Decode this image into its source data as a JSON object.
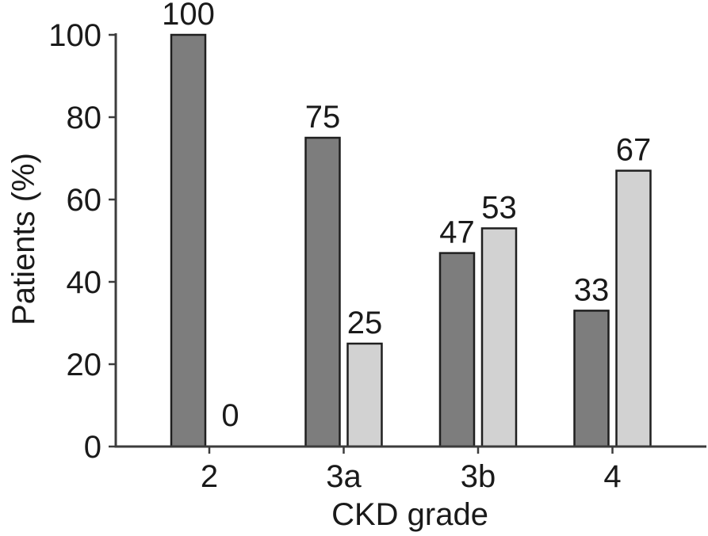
{
  "figure": {
    "background": "#ffffff"
  },
  "chart_data": {
    "type": "bar",
    "title": "",
    "xlabel": "CKD grade",
    "ylabel": "Patients (%)",
    "categories": [
      "2",
      "3a",
      "3b",
      "4"
    ],
    "series": [
      {
        "name": "dark-gray",
        "color": "#7d7d7d",
        "values": [
          100,
          75,
          47,
          33
        ]
      },
      {
        "name": "light-gray",
        "color": "#d2d2d2",
        "values": [
          0,
          25,
          53,
          67
        ]
      }
    ],
    "value_labels": [
      [
        "100",
        "75",
        "47",
        "33"
      ],
      [
        "0",
        "25",
        "53",
        "67"
      ]
    ],
    "ylim": [
      0,
      100
    ],
    "yticks": [
      "0",
      "20",
      "40",
      "60",
      "80",
      "100"
    ],
    "grid": false,
    "legend": "none",
    "bar_border_color": "#1f1f1f",
    "axis_color": "#3c3c3c",
    "text_color": "#1a1a1a"
  }
}
